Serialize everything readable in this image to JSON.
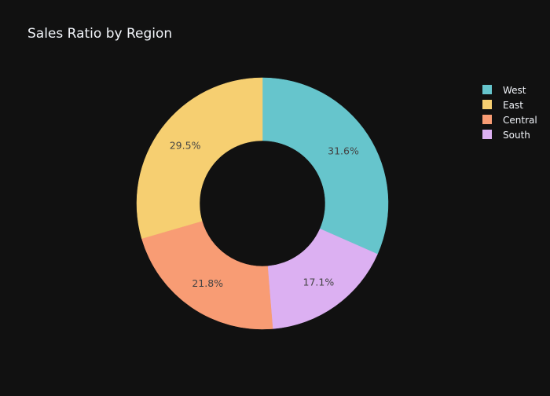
{
  "chart_data": {
    "type": "pie",
    "title": "Sales Ratio by Region",
    "hole": 0.5,
    "categories": [
      "West",
      "East",
      "Central",
      "South"
    ],
    "values": [
      31.6,
      29.5,
      21.8,
      17.1
    ],
    "labels": [
      "31.6%",
      "29.5%",
      "21.8%",
      "17.1%"
    ],
    "colors": [
      "#66c5cc",
      "#f6cf71",
      "#f89c74",
      "#dcb0f2"
    ],
    "slice_order": [
      "West",
      "South",
      "Central",
      "East"
    ],
    "direction": "clockwise",
    "start_angle_deg": 90,
    "legend_position": "top-right",
    "background_color": "#111111",
    "text_color": "#f2f5fa",
    "slice_label_color": "#444444"
  }
}
